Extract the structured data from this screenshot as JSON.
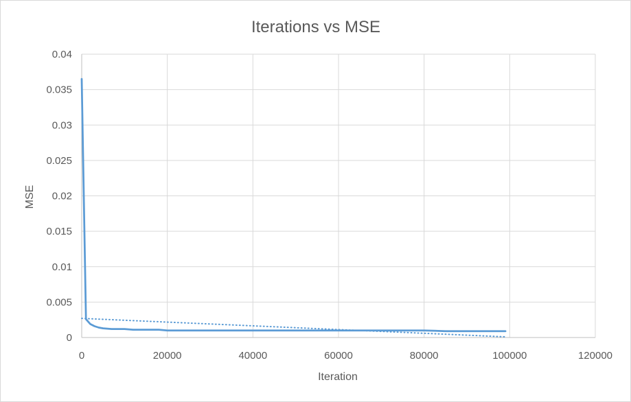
{
  "chart_data": {
    "type": "line",
    "title": "Iterations vs MSE",
    "xlabel": "Iteration",
    "ylabel": "MSE",
    "xlim": [
      0,
      120000
    ],
    "ylim": [
      0,
      0.04
    ],
    "x_ticks": [
      "0",
      "20000",
      "40000",
      "60000",
      "80000",
      "100000",
      "120000"
    ],
    "y_ticks": [
      "0",
      "0.005",
      "0.01",
      "0.015",
      "0.02",
      "0.025",
      "0.03",
      "0.035",
      "0.04"
    ],
    "grid": true,
    "legend": "none",
    "series": [
      {
        "style": "solid",
        "color": "#5b9bd5",
        "points": [
          [
            0,
            0.0365
          ],
          [
            1000,
            0.0026
          ],
          [
            2000,
            0.0019
          ],
          [
            3000,
            0.0016
          ],
          [
            4000,
            0.0014
          ],
          [
            5000,
            0.0013
          ],
          [
            7000,
            0.0012
          ],
          [
            10000,
            0.0012
          ],
          [
            12000,
            0.0011
          ],
          [
            15000,
            0.0011
          ],
          [
            18000,
            0.0011
          ],
          [
            20000,
            0.001
          ],
          [
            22000,
            0.001
          ],
          [
            25000,
            0.001
          ],
          [
            28000,
            0.001
          ],
          [
            30000,
            0.001
          ],
          [
            35000,
            0.001
          ],
          [
            40000,
            0.001
          ],
          [
            45000,
            0.001
          ],
          [
            50000,
            0.001
          ],
          [
            55000,
            0.001
          ],
          [
            60000,
            0.001
          ],
          [
            65000,
            0.001
          ],
          [
            70000,
            0.001
          ],
          [
            75000,
            0.001
          ],
          [
            80000,
            0.001
          ],
          [
            85000,
            0.0009
          ],
          [
            90000,
            0.0009
          ],
          [
            95000,
            0.0009
          ],
          [
            99000,
            0.0009
          ]
        ]
      },
      {
        "style": "dotted",
        "color": "#5b9bd5",
        "points": [
          [
            0,
            0.0027
          ],
          [
            99000,
            0.0001
          ]
        ]
      }
    ]
  }
}
